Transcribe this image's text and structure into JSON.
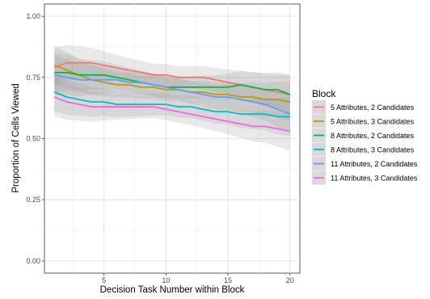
{
  "chart_data": {
    "type": "line",
    "title": "",
    "xlabel": "Decision Task Number within Block",
    "ylabel": "Proportion of Cells Viewed",
    "xlim": [
      0.2,
      20.8
    ],
    "ylim": [
      -0.05,
      1.05
    ],
    "x_ticks": [
      5,
      10,
      15,
      20
    ],
    "y_ticks": [
      0.0,
      0.25,
      0.5,
      0.75,
      1.0
    ],
    "x_tick_labels": [
      "5",
      "10",
      "15",
      "20"
    ],
    "y_tick_labels": [
      "0.00",
      "0.25",
      "0.50",
      "0.75",
      "1.00"
    ],
    "grid": true,
    "legend_position": "right",
    "legend_title": "Block",
    "x": [
      1,
      2,
      3,
      4,
      5,
      6,
      7,
      8,
      9,
      10,
      11,
      12,
      13,
      14,
      15,
      16,
      17,
      18,
      19,
      20
    ],
    "series": [
      {
        "name": "5 Attributes, 2 Candidates",
        "color": "#F8766D",
        "values": [
          0.79,
          0.81,
          0.81,
          0.81,
          0.8,
          0.79,
          0.78,
          0.77,
          0.76,
          0.76,
          0.75,
          0.75,
          0.75,
          0.74,
          0.73,
          0.72,
          0.71,
          0.7,
          0.69,
          0.68
        ]
      },
      {
        "name": "5 Attributes, 3 Candidates",
        "color": "#B79F00",
        "values": [
          0.8,
          0.78,
          0.76,
          0.74,
          0.73,
          0.72,
          0.72,
          0.71,
          0.71,
          0.7,
          0.7,
          0.69,
          0.69,
          0.68,
          0.68,
          0.67,
          0.67,
          0.66,
          0.66,
          0.65
        ]
      },
      {
        "name": "8 Attributes, 2 Candidates",
        "color": "#00BA38",
        "values": [
          0.77,
          0.77,
          0.76,
          0.76,
          0.76,
          0.75,
          0.74,
          0.73,
          0.72,
          0.71,
          0.71,
          0.71,
          0.71,
          0.71,
          0.71,
          0.72,
          0.71,
          0.7,
          0.7,
          0.68
        ]
      },
      {
        "name": "8 Attributes, 3 Candidates",
        "color": "#00BFC4",
        "values": [
          0.69,
          0.67,
          0.66,
          0.65,
          0.65,
          0.64,
          0.64,
          0.64,
          0.64,
          0.64,
          0.63,
          0.63,
          0.62,
          0.61,
          0.61,
          0.6,
          0.6,
          0.6,
          0.59,
          0.59
        ]
      },
      {
        "name": "11 Attributes, 2 Candidates",
        "color": "#619CFF",
        "values": [
          0.76,
          0.75,
          0.74,
          0.74,
          0.74,
          0.74,
          0.73,
          0.73,
          0.72,
          0.71,
          0.7,
          0.69,
          0.68,
          0.67,
          0.67,
          0.66,
          0.65,
          0.64,
          0.62,
          0.6
        ]
      },
      {
        "name": "11 Attributes, 3 Candidates",
        "color": "#F564E3",
        "values": [
          0.67,
          0.65,
          0.64,
          0.63,
          0.63,
          0.63,
          0.63,
          0.63,
          0.63,
          0.62,
          0.61,
          0.6,
          0.59,
          0.58,
          0.57,
          0.56,
          0.55,
          0.55,
          0.54,
          0.53
        ]
      }
    ]
  }
}
